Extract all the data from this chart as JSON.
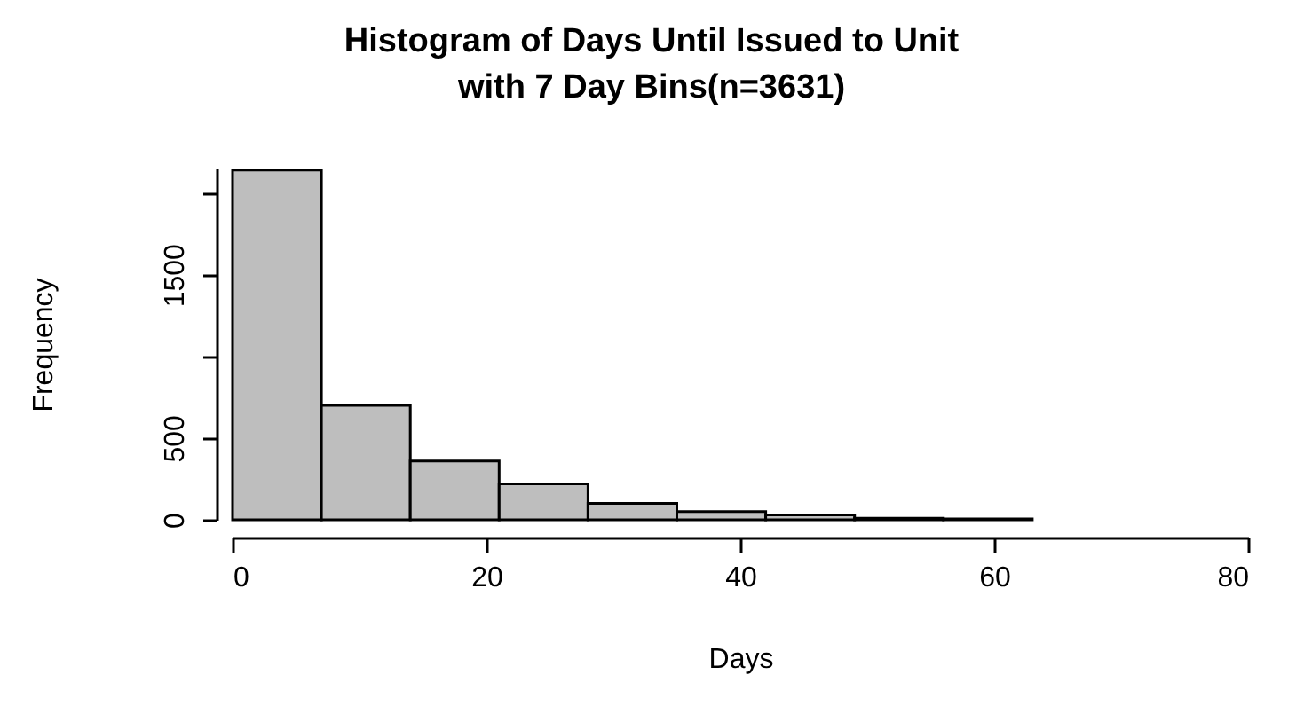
{
  "chart_data": {
    "type": "histogram",
    "title": [
      "Histogram of Days Until Issued to Unit",
      "with 7 Day Bins(n=3631)"
    ],
    "xlabel": "Days",
    "ylabel": "Frequency",
    "bins": [
      0,
      7,
      14,
      21,
      28,
      35,
      42,
      49,
      56,
      63
    ],
    "values": [
      2140,
      700,
      360,
      220,
      100,
      50,
      30,
      10,
      5
    ],
    "color": "#bebebe",
    "xlim": [
      0,
      80
    ],
    "xticks": [
      0,
      20,
      40,
      60,
      80
    ],
    "ylim": [
      0,
      2150
    ],
    "yticks": [
      0,
      500,
      {
        "value": 1000,
        "label": null
      },
      1500,
      {
        "value": 2000,
        "label": null
      }
    ],
    "grid": false
  }
}
